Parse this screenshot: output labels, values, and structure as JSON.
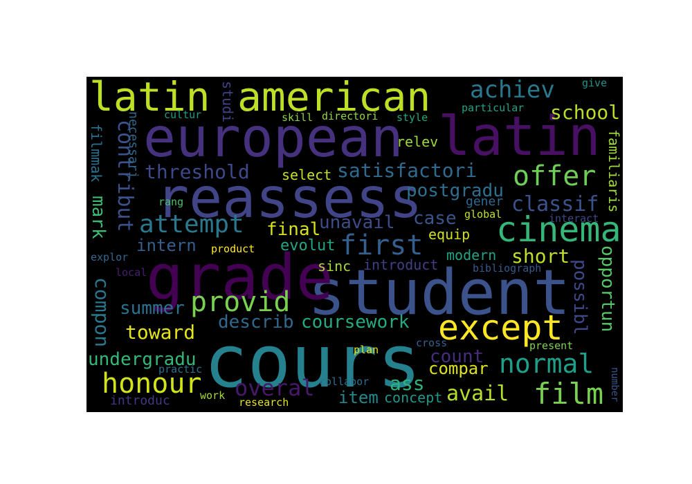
{
  "word_cloud": {
    "words": [
      {
        "text": "cours",
        "color": "#26818e"
      },
      {
        "text": "student",
        "color": "#3b528b"
      },
      {
        "text": "grade",
        "color": "#440154"
      },
      {
        "text": "european",
        "color": "#46317e"
      },
      {
        "text": "latin",
        "color": "#471063"
      },
      {
        "text": "reassess",
        "color": "#414487"
      },
      {
        "text": "latin",
        "color": "#bddf26"
      },
      {
        "text": "american",
        "color": "#bddf26"
      },
      {
        "text": "except",
        "color": "#fde725"
      },
      {
        "text": "cinema",
        "color": "#35b779"
      },
      {
        "text": "film",
        "color": "#7ad151"
      },
      {
        "text": "honour",
        "color": "#d2e21b"
      },
      {
        "text": "first",
        "color": "#355f8d"
      },
      {
        "text": "provid",
        "color": "#7ad151"
      },
      {
        "text": "normal",
        "color": "#1f9e89"
      },
      {
        "text": "attempt",
        "color": "#2a788e"
      },
      {
        "text": "offer",
        "color": "#6ece58"
      },
      {
        "text": "achiev",
        "color": "#2a788e"
      },
      {
        "text": "satisfactori",
        "color": "#306a8e"
      },
      {
        "text": "threshold",
        "color": "#3e4989"
      },
      {
        "text": "classif",
        "color": "#3b528b"
      },
      {
        "text": "postgradu",
        "color": "#2e6f8e"
      },
      {
        "text": "coursework",
        "color": "#25ab82"
      },
      {
        "text": "overal",
        "color": "#48186a"
      },
      {
        "text": "undergradu",
        "color": "#35b779"
      },
      {
        "text": "avail",
        "color": "#b5de2b"
      },
      {
        "text": "toward",
        "color": "#e5e419"
      },
      {
        "text": "summer",
        "color": "#2c728e"
      },
      {
        "text": "describ",
        "color": "#31688e"
      },
      {
        "text": "final",
        "color": "#d8e219"
      },
      {
        "text": "unavail",
        "color": "#3e4c8a"
      },
      {
        "text": "intern",
        "color": "#355f8d"
      },
      {
        "text": "short",
        "color": "#c2df23"
      },
      {
        "text": "school",
        "color": "#b8de29"
      },
      {
        "text": "case",
        "color": "#39568c"
      },
      {
        "text": "ass",
        "color": "#2db27d"
      },
      {
        "text": "count",
        "color": "#472d7b"
      },
      {
        "text": "compar",
        "color": "#dde318"
      },
      {
        "text": "item",
        "color": "#23898e"
      },
      {
        "text": "concept",
        "color": "#1f988b"
      },
      {
        "text": "modern",
        "color": "#20a486"
      },
      {
        "text": "introduct",
        "color": "#433e85"
      },
      {
        "text": "sinc",
        "color": "#a8db34"
      },
      {
        "text": "evolut",
        "color": "#22a785"
      },
      {
        "text": "equip",
        "color": "#d0e11c"
      },
      {
        "text": "select",
        "color": "#c8e020"
      },
      {
        "text": "relev",
        "color": "#9bd93c"
      },
      {
        "text": "gener",
        "color": "#31688e"
      },
      {
        "text": "global",
        "color": "#c5e021"
      },
      {
        "text": "interact",
        "color": "#3f4788"
      },
      {
        "text": "bibliograph",
        "color": "#38588c"
      },
      {
        "text": "particular",
        "color": "#20a386"
      },
      {
        "text": "give",
        "color": "#20928c"
      },
      {
        "text": "style",
        "color": "#23a983"
      },
      {
        "text": "skill",
        "color": "#8bd646"
      },
      {
        "text": "directori",
        "color": "#8fd744"
      },
      {
        "text": "cultur",
        "color": "#1e9b8a"
      },
      {
        "text": "product",
        "color": "#fde725"
      },
      {
        "text": "explor",
        "color": "#31688e"
      },
      {
        "text": "local",
        "color": "#481f70"
      },
      {
        "text": "rang",
        "color": "#4ac16d"
      },
      {
        "text": "cross",
        "color": "#34618d"
      },
      {
        "text": "present",
        "color": "#7fd34e"
      },
      {
        "text": "plan",
        "color": "#dfe318"
      },
      {
        "text": "practic",
        "color": "#2c728e"
      },
      {
        "text": "collabor",
        "color": "#2d708e"
      },
      {
        "text": "work",
        "color": "#a2da37"
      },
      {
        "text": "research",
        "color": "#e7e419"
      },
      {
        "text": "introduc",
        "color": "#453781"
      },
      {
        "text": "number",
        "color": "#39568c"
      },
      {
        "text": "studi",
        "color": "#414487"
      },
      {
        "text": "contribut",
        "color": "#3b528b"
      },
      {
        "text": "mark",
        "color": "#3dbc74"
      },
      {
        "text": "filmmak",
        "color": "#2c728e"
      },
      {
        "text": "necessari",
        "color": "#31688e"
      },
      {
        "text": "compon",
        "color": "#2a788e"
      },
      {
        "text": "possibl",
        "color": "#3e4989"
      },
      {
        "text": "opportun",
        "color": "#56c667"
      },
      {
        "text": "familiaris",
        "color": "#a0da39"
      }
    ]
  }
}
